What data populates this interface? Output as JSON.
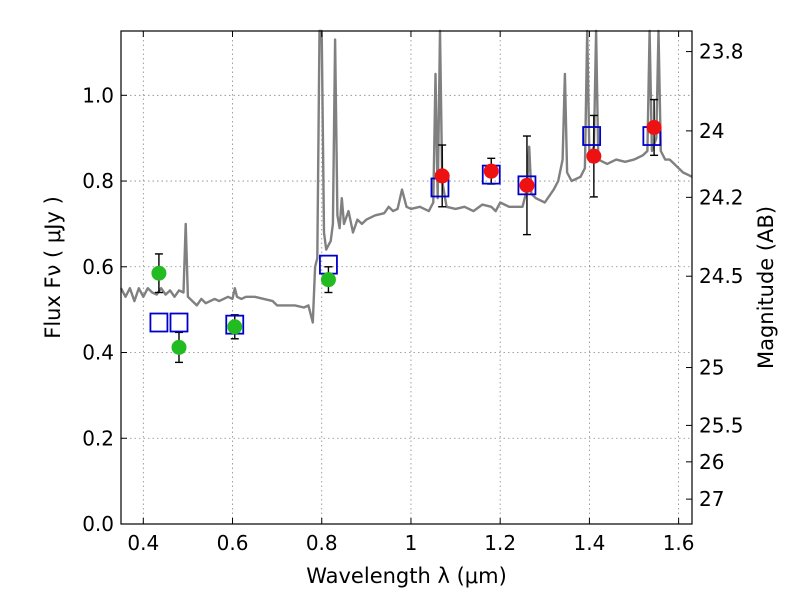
{
  "chart_data": {
    "type": "scatter",
    "xlabel": "Wavelength  λ (μm)",
    "ylabel": "Flux  Fν ( μJy )",
    "y2label": "Magnitude (AB)",
    "xlim": [
      0.35,
      1.63
    ],
    "ylim": [
      0.0,
      1.15
    ],
    "grid": true,
    "xticks": [
      0.4,
      0.6,
      0.8,
      1.0,
      1.2,
      1.4,
      1.6
    ],
    "xtick_labels": [
      "0.4",
      "0.6",
      "0.8",
      "1",
      "1.2",
      "1.4",
      "1.6"
    ],
    "yticks": [
      0.0,
      0.2,
      0.4,
      0.6,
      0.8,
      1.0
    ],
    "ytick_labels": [
      "0.0",
      "0.2",
      "0.4",
      "0.6",
      "0.8",
      "1.0"
    ],
    "magnitude_ticks": [
      {
        "label": "23.8",
        "flux": 1.102
      },
      {
        "label": "24",
        "flux": 0.917
      },
      {
        "label": "24.2",
        "flux": 0.762
      },
      {
        "label": "24.5",
        "flux": 0.578
      },
      {
        "label": "25",
        "flux": 0.365
      },
      {
        "label": "25.5",
        "flux": 0.23
      },
      {
        "label": "26",
        "flux": 0.145
      },
      {
        "label": "27",
        "flux": 0.058
      }
    ],
    "colors": {
      "spectrum": "#808080",
      "model": "#0000cc",
      "optical": "#22bb22",
      "infrared": "#ee1111",
      "errorbar": "#000000",
      "grid": "#888888"
    },
    "series": [
      {
        "kind": "line",
        "points": [
          [
            0.35,
            0.55
          ],
          [
            0.36,
            0.53
          ],
          [
            0.37,
            0.55
          ],
          [
            0.38,
            0.52
          ],
          [
            0.39,
            0.55
          ],
          [
            0.4,
            0.53
          ],
          [
            0.41,
            0.55
          ],
          [
            0.42,
            0.54
          ],
          [
            0.43,
            0.535
          ],
          [
            0.44,
            0.55
          ],
          [
            0.45,
            0.535
          ],
          [
            0.46,
            0.545
          ],
          [
            0.47,
            0.53
          ],
          [
            0.48,
            0.545
          ],
          [
            0.49,
            0.54
          ],
          [
            0.495,
            0.7
          ],
          [
            0.5,
            0.53
          ],
          [
            0.51,
            0.52
          ],
          [
            0.52,
            0.51
          ],
          [
            0.53,
            0.525
          ],
          [
            0.54,
            0.515
          ],
          [
            0.55,
            0.52
          ],
          [
            0.56,
            0.525
          ],
          [
            0.57,
            0.52
          ],
          [
            0.58,
            0.525
          ],
          [
            0.59,
            0.53
          ],
          [
            0.6,
            0.525
          ],
          [
            0.605,
            0.55
          ],
          [
            0.61,
            0.53
          ],
          [
            0.62,
            0.525
          ],
          [
            0.63,
            0.53
          ],
          [
            0.65,
            0.53
          ],
          [
            0.67,
            0.525
          ],
          [
            0.69,
            0.52
          ],
          [
            0.7,
            0.51
          ],
          [
            0.72,
            0.51
          ],
          [
            0.74,
            0.51
          ],
          [
            0.76,
            0.505
          ],
          [
            0.77,
            0.51
          ],
          [
            0.78,
            0.47
          ],
          [
            0.785,
            0.6
          ],
          [
            0.79,
            0.62
          ],
          [
            0.795,
            1.15
          ],
          [
            0.8,
            1.15
          ],
          [
            0.805,
            0.68
          ],
          [
            0.81,
            0.64
          ],
          [
            0.815,
            0.65
          ],
          [
            0.82,
            0.66
          ],
          [
            0.825,
            0.7
          ],
          [
            0.83,
            1.13
          ],
          [
            0.835,
            0.72
          ],
          [
            0.84,
            0.69
          ],
          [
            0.845,
            0.76
          ],
          [
            0.85,
            0.7
          ],
          [
            0.86,
            0.73
          ],
          [
            0.87,
            0.68
          ],
          [
            0.88,
            0.71
          ],
          [
            0.89,
            0.7
          ],
          [
            0.9,
            0.71
          ],
          [
            0.92,
            0.72
          ],
          [
            0.94,
            0.725
          ],
          [
            0.95,
            0.74
          ],
          [
            0.96,
            0.73
          ],
          [
            0.97,
            0.735
          ],
          [
            0.98,
            0.78
          ],
          [
            0.99,
            0.74
          ],
          [
            1.0,
            0.735
          ],
          [
            1.02,
            0.74
          ],
          [
            1.04,
            0.73
          ],
          [
            1.05,
            0.75
          ],
          [
            1.055,
            1.05
          ],
          [
            1.06,
            0.76
          ],
          [
            1.065,
            1.15
          ],
          [
            1.07,
            0.8
          ],
          [
            1.08,
            0.74
          ],
          [
            1.1,
            0.735
          ],
          [
            1.12,
            0.74
          ],
          [
            1.14,
            0.73
          ],
          [
            1.16,
            0.745
          ],
          [
            1.18,
            0.74
          ],
          [
            1.19,
            0.73
          ],
          [
            1.2,
            0.75
          ],
          [
            1.22,
            0.74
          ],
          [
            1.24,
            0.74
          ],
          [
            1.25,
            0.74
          ],
          [
            1.26,
            0.78
          ],
          [
            1.265,
            0.88
          ],
          [
            1.27,
            0.77
          ],
          [
            1.28,
            0.76
          ],
          [
            1.3,
            0.75
          ],
          [
            1.32,
            0.78
          ],
          [
            1.33,
            0.8
          ],
          [
            1.34,
            0.85
          ],
          [
            1.345,
            1.05
          ],
          [
            1.35,
            0.82
          ],
          [
            1.36,
            0.8
          ],
          [
            1.38,
            0.81
          ],
          [
            1.39,
            0.83
          ],
          [
            1.395,
            1.15
          ],
          [
            1.4,
            0.86
          ],
          [
            1.41,
            0.88
          ],
          [
            1.415,
            1.15
          ],
          [
            1.42,
            0.85
          ],
          [
            1.44,
            0.84
          ],
          [
            1.46,
            0.85
          ],
          [
            1.48,
            0.845
          ],
          [
            1.5,
            0.85
          ],
          [
            1.52,
            0.86
          ],
          [
            1.53,
            0.87
          ],
          [
            1.535,
            1.15
          ],
          [
            1.54,
            0.87
          ],
          [
            1.55,
            0.9
          ],
          [
            1.555,
            1.15
          ],
          [
            1.56,
            0.87
          ],
          [
            1.57,
            0.85
          ],
          [
            1.58,
            0.85
          ],
          [
            1.59,
            0.84
          ],
          [
            1.6,
            0.83
          ],
          [
            1.61,
            0.82
          ],
          [
            1.62,
            0.815
          ],
          [
            1.63,
            0.81
          ]
        ]
      },
      {
        "kind": "square",
        "points": [
          [
            0.435,
            0.47
          ],
          [
            0.48,
            0.47
          ],
          [
            0.605,
            0.465
          ],
          [
            0.815,
            0.605
          ],
          [
            1.065,
            0.785
          ],
          [
            1.18,
            0.815
          ],
          [
            1.26,
            0.79
          ],
          [
            1.405,
            0.905
          ],
          [
            1.54,
            0.905
          ]
        ]
      },
      {
        "kind": "circle",
        "color_key": "optical",
        "points": [
          [
            0.435,
            0.585,
            0.045
          ],
          [
            0.48,
            0.412,
            0.035
          ],
          [
            0.605,
            0.46,
            0.028
          ],
          [
            0.815,
            0.57,
            0.03
          ]
        ]
      },
      {
        "kind": "circle",
        "color_key": "infrared",
        "points": [
          [
            1.07,
            0.812,
            0.072
          ],
          [
            1.18,
            0.823,
            0.03
          ],
          [
            1.26,
            0.79,
            0.115
          ],
          [
            1.41,
            0.858,
            0.095
          ],
          [
            1.545,
            0.925,
            0.065
          ]
        ]
      }
    ]
  }
}
